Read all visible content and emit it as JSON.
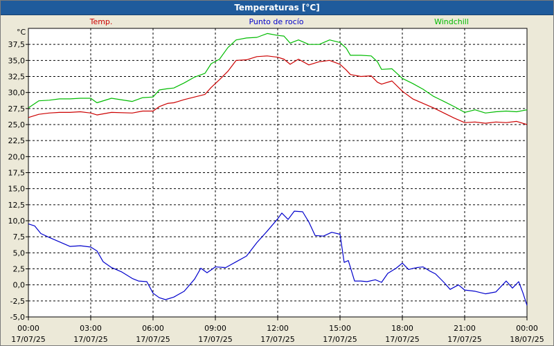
{
  "window": {
    "title": "Temperaturas [°C]"
  },
  "chart_data": {
    "type": "line",
    "title": "Temperaturas [°C]",
    "ylabel": "°C",
    "xlabel": "",
    "ylim": [
      -5.0,
      40.0
    ],
    "grid": true,
    "y_ticks": [
      "37,5",
      "35,0",
      "32,5",
      "30,0",
      "27,5",
      "25,0",
      "22,5",
      "20,0",
      "17,5",
      "15,0",
      "12,5",
      "10,0",
      "7,5",
      "5,0",
      "2,5",
      "0,0",
      "-2,5",
      "-5,0"
    ],
    "y_tick_values": [
      37.5,
      35,
      32.5,
      30,
      27.5,
      25,
      22.5,
      20,
      17.5,
      15,
      12.5,
      10,
      7.5,
      5,
      2.5,
      0,
      -2.5,
      -5
    ],
    "x_ticks": [
      {
        "hour": 0,
        "time": "00:00",
        "date": "17/07/25"
      },
      {
        "hour": 3,
        "time": "03:00",
        "date": "17/07/25"
      },
      {
        "hour": 6,
        "time": "06:00",
        "date": "17/07/25"
      },
      {
        "hour": 9,
        "time": "09:00",
        "date": "17/07/25"
      },
      {
        "hour": 12,
        "time": "12:00",
        "date": "17/07/25"
      },
      {
        "hour": 15,
        "time": "15:00",
        "date": "17/07/25"
      },
      {
        "hour": 18,
        "time": "18:00",
        "date": "17/07/25"
      },
      {
        "hour": 21,
        "time": "21:00",
        "date": "17/07/25"
      },
      {
        "hour": 24,
        "time": "00:00",
        "date": "18/07/25"
      }
    ],
    "series": [
      {
        "name": "Temp.",
        "color": "#cc0000",
        "points": [
          [
            0,
            26.1
          ],
          [
            0.5,
            26.6
          ],
          [
            1,
            26.8
          ],
          [
            1.5,
            26.9
          ],
          [
            2,
            26.9
          ],
          [
            2.5,
            27.0
          ],
          [
            3,
            26.8
          ],
          [
            3.3,
            26.5
          ],
          [
            4,
            26.9
          ],
          [
            5,
            26.8
          ],
          [
            5.5,
            27.1
          ],
          [
            6,
            27.1
          ],
          [
            6.3,
            27.8
          ],
          [
            6.7,
            28.3
          ],
          [
            7,
            28.4
          ],
          [
            7.5,
            28.9
          ],
          [
            8,
            29.3
          ],
          [
            8.5,
            29.7
          ],
          [
            8.8,
            30.8
          ],
          [
            9.2,
            32.0
          ],
          [
            9.6,
            33.3
          ],
          [
            10,
            35.0
          ],
          [
            10.5,
            35.1
          ],
          [
            11,
            35.6
          ],
          [
            11.5,
            35.7
          ],
          [
            12,
            35.5
          ],
          [
            12.3,
            35.2
          ],
          [
            12.6,
            34.4
          ],
          [
            13,
            35.2
          ],
          [
            13.5,
            34.3
          ],
          [
            14,
            34.8
          ],
          [
            14.5,
            35.0
          ],
          [
            15,
            34.4
          ],
          [
            15.3,
            33.5
          ],
          [
            15.5,
            32.8
          ],
          [
            16,
            32.5
          ],
          [
            16.5,
            32.6
          ],
          [
            16.8,
            31.6
          ],
          [
            17,
            31.3
          ],
          [
            17.5,
            31.8
          ],
          [
            18,
            30.2
          ],
          [
            18.5,
            29.0
          ],
          [
            19,
            28.3
          ],
          [
            19.5,
            27.6
          ],
          [
            20,
            26.8
          ],
          [
            20.5,
            26.0
          ],
          [
            21,
            25.3
          ],
          [
            21.5,
            25.4
          ],
          [
            22,
            25.2
          ],
          [
            22.5,
            25.4
          ],
          [
            23,
            25.3
          ],
          [
            23.5,
            25.5
          ],
          [
            24,
            25.0
          ]
        ]
      },
      {
        "name": "Punto de rocío",
        "color": "#0000cc",
        "points": [
          [
            0,
            9.5
          ],
          [
            0.3,
            9.2
          ],
          [
            0.6,
            8.0
          ],
          [
            1,
            7.4
          ],
          [
            1.5,
            6.7
          ],
          [
            2,
            6.0
          ],
          [
            2.5,
            6.1
          ],
          [
            3,
            5.9
          ],
          [
            3.3,
            5.3
          ],
          [
            3.6,
            3.6
          ],
          [
            4,
            2.7
          ],
          [
            4.5,
            2.0
          ],
          [
            5,
            1.0
          ],
          [
            5.3,
            0.6
          ],
          [
            5.7,
            0.5
          ],
          [
            6,
            -1.3
          ],
          [
            6.3,
            -2.0
          ],
          [
            6.6,
            -2.3
          ],
          [
            7,
            -1.9
          ],
          [
            7.5,
            -1.0
          ],
          [
            8,
            0.9
          ],
          [
            8.3,
            2.6
          ],
          [
            8.6,
            1.9
          ],
          [
            9,
            2.8
          ],
          [
            9.5,
            2.7
          ],
          [
            10,
            3.6
          ],
          [
            10.5,
            4.5
          ],
          [
            11,
            6.6
          ],
          [
            11.5,
            8.4
          ],
          [
            12,
            10.3
          ],
          [
            12.2,
            11.2
          ],
          [
            12.5,
            10.2
          ],
          [
            12.8,
            11.5
          ],
          [
            13.2,
            11.4
          ],
          [
            13.5,
            9.8
          ],
          [
            13.8,
            7.7
          ],
          [
            14.2,
            7.6
          ],
          [
            14.6,
            8.2
          ],
          [
            15,
            7.9
          ],
          [
            15.2,
            3.5
          ],
          [
            15.4,
            3.8
          ],
          [
            15.7,
            0.6
          ],
          [
            16,
            0.6
          ],
          [
            16.3,
            0.5
          ],
          [
            16.7,
            0.8
          ],
          [
            17,
            0.4
          ],
          [
            17.3,
            1.8
          ],
          [
            17.7,
            2.6
          ],
          [
            18,
            3.4
          ],
          [
            18.3,
            2.4
          ],
          [
            18.7,
            2.7
          ],
          [
            19,
            2.8
          ],
          [
            19.3,
            2.2
          ],
          [
            19.6,
            1.7
          ],
          [
            20,
            0.4
          ],
          [
            20.3,
            -0.7
          ],
          [
            20.7,
            0.0
          ],
          [
            21,
            -0.8
          ],
          [
            21.5,
            -1.0
          ],
          [
            22,
            -1.4
          ],
          [
            22.5,
            -1.1
          ],
          [
            23,
            0.6
          ],
          [
            23.3,
            -0.5
          ],
          [
            23.6,
            0.5
          ],
          [
            23.8,
            -1.2
          ],
          [
            24,
            -3.2
          ]
        ]
      },
      {
        "name": "Windchill",
        "color": "#00bb00",
        "points": [
          [
            0,
            27.6
          ],
          [
            0.5,
            28.7
          ],
          [
            1,
            28.8
          ],
          [
            1.5,
            29.0
          ],
          [
            2,
            29.0
          ],
          [
            2.5,
            29.1
          ],
          [
            3,
            29.1
          ],
          [
            3.3,
            28.4
          ],
          [
            4,
            29.1
          ],
          [
            5,
            28.6
          ],
          [
            5.5,
            29.2
          ],
          [
            6,
            29.3
          ],
          [
            6.3,
            30.4
          ],
          [
            6.7,
            30.6
          ],
          [
            7,
            30.7
          ],
          [
            7.5,
            31.5
          ],
          [
            8,
            32.4
          ],
          [
            8.5,
            33.0
          ],
          [
            8.8,
            34.5
          ],
          [
            9.2,
            35.2
          ],
          [
            9.6,
            37.0
          ],
          [
            10,
            38.2
          ],
          [
            10.5,
            38.5
          ],
          [
            11,
            38.6
          ],
          [
            11.5,
            39.2
          ],
          [
            12,
            38.9
          ],
          [
            12.3,
            38.8
          ],
          [
            12.6,
            37.7
          ],
          [
            13,
            38.2
          ],
          [
            13.5,
            37.5
          ],
          [
            14,
            37.5
          ],
          [
            14.5,
            38.2
          ],
          [
            15,
            37.8
          ],
          [
            15.3,
            36.9
          ],
          [
            15.5,
            35.8
          ],
          [
            16,
            35.8
          ],
          [
            16.5,
            35.7
          ],
          [
            16.8,
            34.8
          ],
          [
            17,
            33.6
          ],
          [
            17.5,
            33.7
          ],
          [
            18,
            32.2
          ],
          [
            18.5,
            31.4
          ],
          [
            19,
            30.5
          ],
          [
            19.5,
            29.4
          ],
          [
            20,
            28.6
          ],
          [
            20.5,
            27.8
          ],
          [
            21,
            26.9
          ],
          [
            21.5,
            27.3
          ],
          [
            22,
            26.8
          ],
          [
            22.5,
            27.0
          ],
          [
            23,
            27.1
          ],
          [
            23.5,
            27.0
          ],
          [
            24,
            27.3
          ]
        ]
      }
    ]
  }
}
